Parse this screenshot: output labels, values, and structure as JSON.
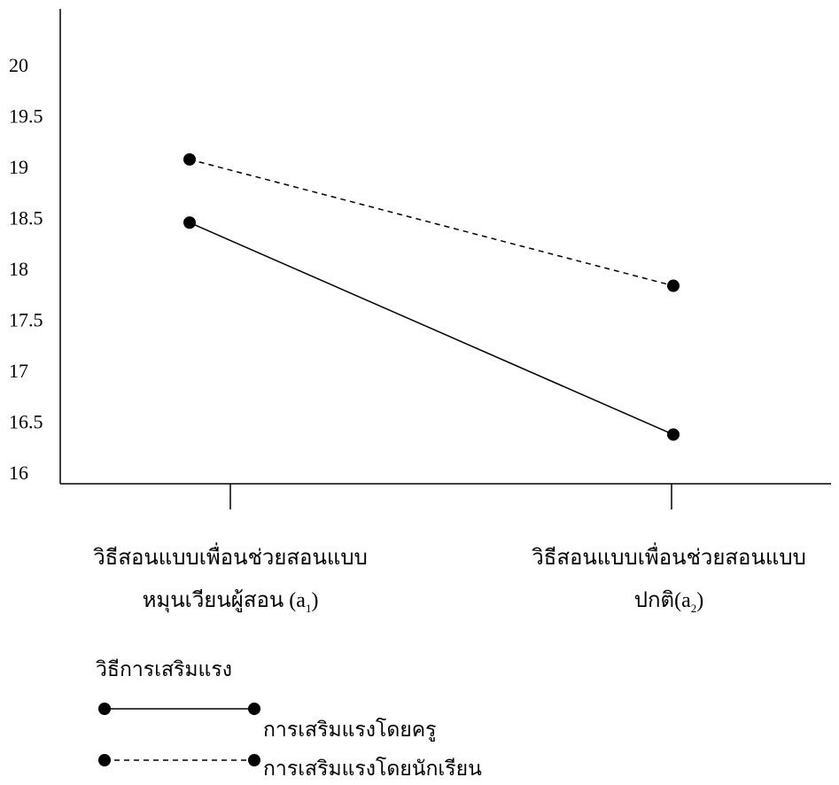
{
  "chart_data": {
    "type": "line",
    "categories": [
      {
        "line1": "วิธีสอนแบบเพื่อนช่วยสอนแบบ",
        "line2_text": "หมุนเวียนผู้สอน (a",
        "sub": "1",
        "close": ")"
      },
      {
        "line1": "วิธีสอนแบบเพื่อนช่วยสอนแบบ",
        "line2_text": "ปกติ(a",
        "sub": "2",
        "close": ")"
      }
    ],
    "series": [
      {
        "name": "การเสริมแรงโดยครู",
        "values": [
          18.45,
          16.37
        ],
        "style": "solid"
      },
      {
        "name": "การเสริมแรงโดยนักเรียน",
        "values": [
          19.07,
          17.83
        ],
        "style": "dashed"
      }
    ],
    "yticks": [
      "20",
      "19.5",
      "19",
      "18.5",
      "18",
      "17.5",
      "17",
      "16.5",
      "16"
    ],
    "ylim": [
      16,
      20
    ],
    "legend_title": "วิธีการเสริมแรง",
    "grid": false,
    "legend_position": "bottom-left",
    "line_color": "#000000"
  }
}
